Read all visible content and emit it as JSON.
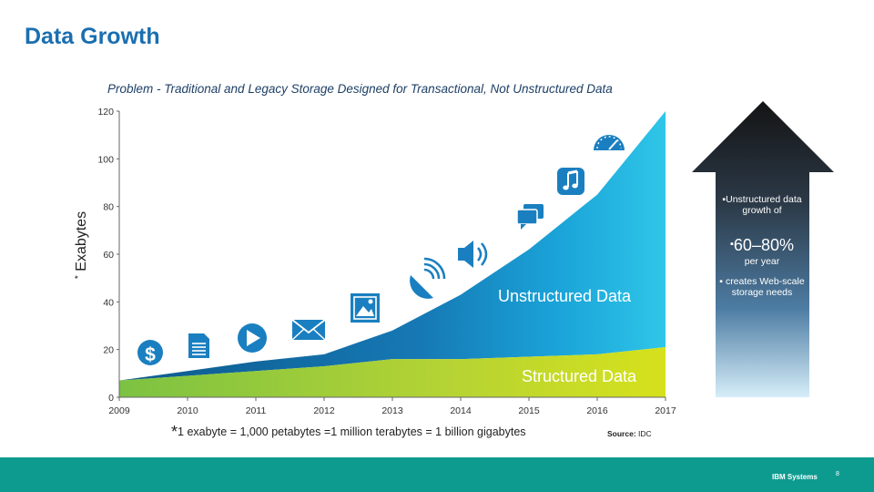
{
  "page": {
    "title": "Data Growth",
    "footnote_star": "*",
    "footnote": "1 exabyte = 1,000 petabytes =1 million terabytes = 1 billion gigabytes",
    "source_label": "Source:",
    "source_value": "IDC",
    "arrow_line1": "Unstructured data growth of",
    "arrow_highlight": "60–80%",
    "arrow_line2": "per year",
    "arrow_line3": "creates Web-scale storage needs",
    "bullet": "▪",
    "footer_brand": "IBM Systems",
    "page_number": "8"
  },
  "chart_data": {
    "type": "area",
    "stacked": true,
    "title": "Problem - Traditional and Legacy Storage Designed for Transactional, Not Unstructured Data",
    "ylabel_star": "*",
    "ylabel": "Exabytes",
    "xlabel": "",
    "x": [
      2009,
      2010,
      2011,
      2012,
      2013,
      2014,
      2015,
      2016,
      2017
    ],
    "xlim": [
      2009,
      2017
    ],
    "ylim": [
      0,
      120
    ],
    "yticks": [
      0,
      20,
      40,
      60,
      80,
      100,
      120
    ],
    "grid": false,
    "series": [
      {
        "name": "Structured Data",
        "values": [
          7,
          9,
          11,
          13,
          16,
          16,
          17,
          18,
          21
        ],
        "color": "#8dc63f"
      },
      {
        "name": "Unstructured Data",
        "values": [
          0,
          2,
          4,
          5,
          12,
          27,
          45,
          67,
          99
        ],
        "color": "#1a9ad6"
      }
    ],
    "icons": [
      "dollar-icon",
      "document-icon",
      "play-icon",
      "envelope-icon",
      "picture-icon",
      "satellite-dish-icon",
      "speaker-icon",
      "chat-icon",
      "music-note-icon",
      "speedometer-icon"
    ]
  }
}
